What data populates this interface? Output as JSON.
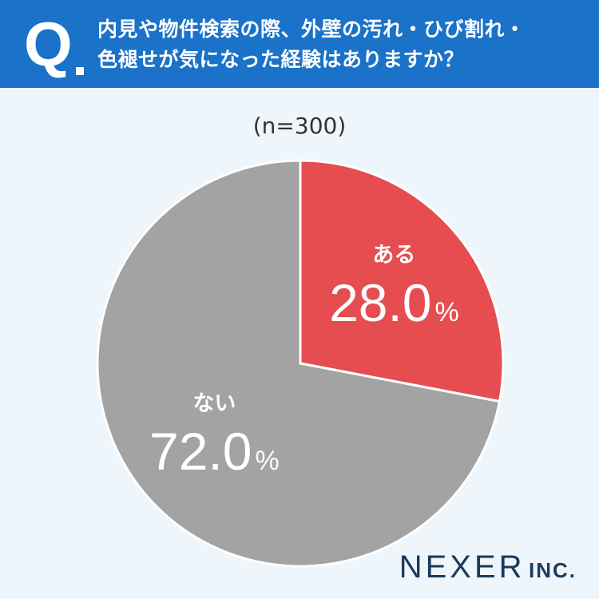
{
  "header": {
    "q_mark": "Q",
    "question_lines": [
      "内見や物件検索の際、外壁の汚れ・ひび割れ・",
      "色褪せが気になった経験はありますか？"
    ]
  },
  "sample_size_label": "(n=300)",
  "chart_data": {
    "type": "pie",
    "title": "",
    "categories": [
      "ある",
      "ない"
    ],
    "values": [
      28.0,
      72.0
    ],
    "value_labels": [
      "28.0",
      "72.0"
    ],
    "unit": "%",
    "colors": [
      "#e54d50",
      "#a3a3a3"
    ],
    "start_angle_deg": 0,
    "direction": "clockwise"
  },
  "logo": {
    "main": "NEXER",
    "sub": "INC."
  }
}
